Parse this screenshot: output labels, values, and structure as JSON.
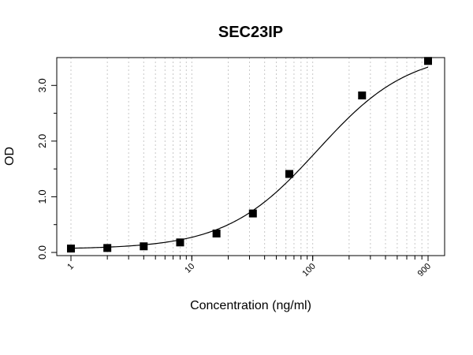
{
  "chart_data": {
    "type": "scatter",
    "title": "SEC23IP",
    "xlabel": "Concentration (ng/ml)",
    "ylabel": "OD",
    "x_scale": "log",
    "xlim": [
      1,
      900
    ],
    "ylim": [
      0,
      3.5
    ],
    "x_tick_labels": [
      "1",
      "10",
      "100",
      "900"
    ],
    "x_tick_values": [
      1,
      10,
      100,
      900
    ],
    "y_tick_labels": [
      "0.0",
      "1.0",
      "2.0",
      "3.0"
    ],
    "y_tick_values": [
      0,
      1,
      2,
      3
    ],
    "grid": "vertical dotted lines at log minor ticks",
    "marker": "filled square",
    "fit": "4-parameter logistic curve",
    "points": [
      {
        "x": 1,
        "y": 0.07
      },
      {
        "x": 2,
        "y": 0.08
      },
      {
        "x": 4,
        "y": 0.11
      },
      {
        "x": 8,
        "y": 0.18
      },
      {
        "x": 16,
        "y": 0.34
      },
      {
        "x": 32,
        "y": 0.7
      },
      {
        "x": 64,
        "y": 1.41
      },
      {
        "x": 256,
        "y": 2.82
      },
      {
        "x": 900,
        "y": 3.44
      }
    ]
  }
}
